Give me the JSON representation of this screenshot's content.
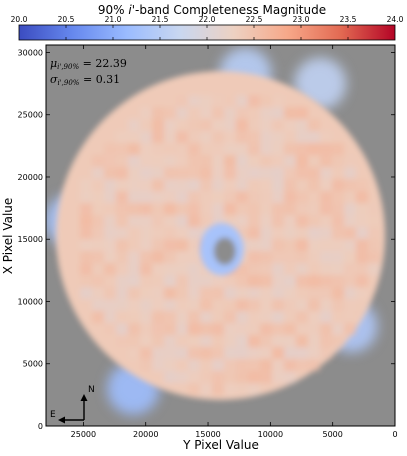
{
  "chart_data": {
    "type": "heatmap",
    "title": "90% i'-band Completeness Magnitude",
    "title_parts": {
      "prefix": "90% ",
      "band": "i'",
      "suffix": "-band Completeness Magnitude"
    },
    "xlabel": "Y Pixel Value",
    "ylabel": "X Pixel Value",
    "xlim": [
      28000,
      0
    ],
    "ylim": [
      30600,
      0
    ],
    "x_ticks": [
      25000,
      20000,
      15000,
      10000,
      5000,
      0
    ],
    "y_ticks": [
      0,
      5000,
      10000,
      15000,
      20000,
      25000,
      30000
    ],
    "colorbar": {
      "range": [
        20.0,
        24.0
      ],
      "ticks": [
        "20.0",
        "20.5",
        "21.0",
        "21.5",
        "22.0",
        "22.5",
        "23.0",
        "23.5",
        "24.0"
      ],
      "colors": [
        "#3b4cc0",
        "#6688ee",
        "#9abbff",
        "#c9d7f0",
        "#edd1c2",
        "#f7a889",
        "#e26952",
        "#b40426"
      ]
    },
    "stats": {
      "mu_label": "μ",
      "mu_sub": "i',90%",
      "mu_value": "22.39",
      "sigma_label": "σ",
      "sigma_sub": "i',90%",
      "sigma_value": "0.31"
    },
    "map": {
      "center": [
        14000,
        15300
      ],
      "radius": 13200,
      "hole_center": [
        13900,
        14200
      ],
      "hole_radius": 1100,
      "typical_value": 22.39,
      "low_value_regions": [
        {
          "y": 21000,
          "x": 3000,
          "value": 21.2
        },
        {
          "y": 3500,
          "x": 8000,
          "value": 21.4
        },
        {
          "y": 26000,
          "x": 16500,
          "value": 21.3
        },
        {
          "y": 12000,
          "x": 28300,
          "value": 21.5
        },
        {
          "y": 6000,
          "x": 27500,
          "value": 21.6
        }
      ]
    },
    "compass": {
      "north": "N",
      "east": "E"
    },
    "grid": false,
    "background_color": "#8c8c8c"
  }
}
